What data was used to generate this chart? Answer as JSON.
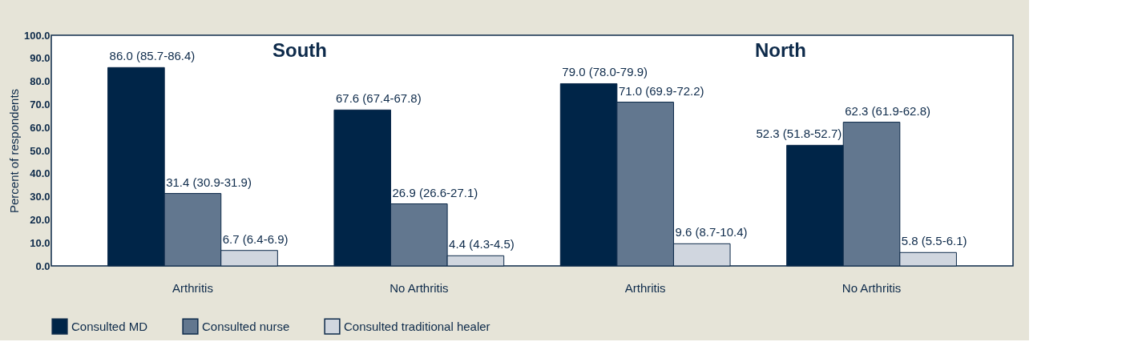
{
  "chart_data": {
    "type": "bar",
    "ylabel": "Percent of respondents",
    "categories": [
      "Arthritis",
      "No Arthritis",
      "Arthritis",
      "No Arthritis"
    ],
    "series": [
      {
        "name": "Consulted MD",
        "color": "#002548",
        "values": [
          86.0,
          67.6,
          79.0,
          52.3
        ],
        "value_labels": [
          "86.0 (85.7-86.4)",
          "67.6 (67.4-67.8)",
          "79.0 (78.0-79.9)",
          "52.3 (51.8-52.7)"
        ]
      },
      {
        "name": "Consulted nurse",
        "color": "#62778f",
        "values": [
          31.4,
          26.9,
          71.0,
          62.3
        ],
        "value_labels": [
          "31.4 (30.9-31.9)",
          "26.9 (26.6-27.1)",
          "71.0 (69.9-72.2)",
          "62.3 (61.9-62.8)"
        ]
      },
      {
        "name": "Consulted traditional healer",
        "color": "#d0d6df",
        "values": [
          6.7,
          4.4,
          9.6,
          5.8
        ],
        "value_labels": [
          "6.7 (6.4-6.9)",
          "4.4 (4.3-4.5)",
          "9.6 (8.7-10.4)",
          "5.8 (5.5-6.1)"
        ]
      }
    ],
    "annotations": [
      "South",
      "North"
    ],
    "ylim": [
      0,
      100
    ],
    "yticks": [
      {
        "value": 0,
        "label": "0.0"
      },
      {
        "value": 10,
        "label": "10.0"
      },
      {
        "value": 20,
        "label": "20.0"
      },
      {
        "value": 30,
        "label": "30.0"
      },
      {
        "value": 40,
        "label": "40.0"
      },
      {
        "value": 50,
        "label": "50.0"
      },
      {
        "value": 60,
        "label": "60.0"
      },
      {
        "value": 70,
        "label": "70.0"
      },
      {
        "value": 80,
        "label": "80.0"
      },
      {
        "value": 90,
        "label": "90.0"
      },
      {
        "value": 100,
        "label": "100.0"
      }
    ],
    "grid": false,
    "legend": "bottom"
  }
}
